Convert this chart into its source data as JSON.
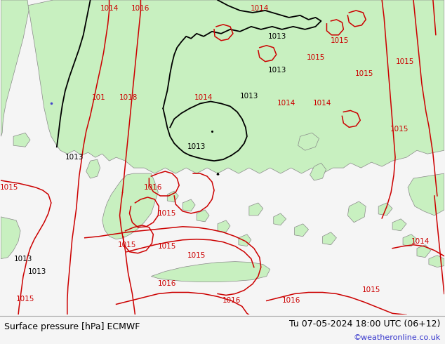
{
  "title_left": "Surface pressure [hPa] ECMWF",
  "title_right": "Tu 07-05-2024 18:00 UTC (06+12)",
  "watermark": "©weatheronline.co.uk",
  "bg_color": "#e0e0e0",
  "land_color": "#c8f0c0",
  "fig_width": 6.34,
  "fig_height": 4.9,
  "dpi": 100,
  "title_fontsize": 9,
  "watermark_color": "#3333cc",
  "red": "#cc0000",
  "black": "#000000",
  "gray": "#888888",
  "white": "#f5f5f5"
}
